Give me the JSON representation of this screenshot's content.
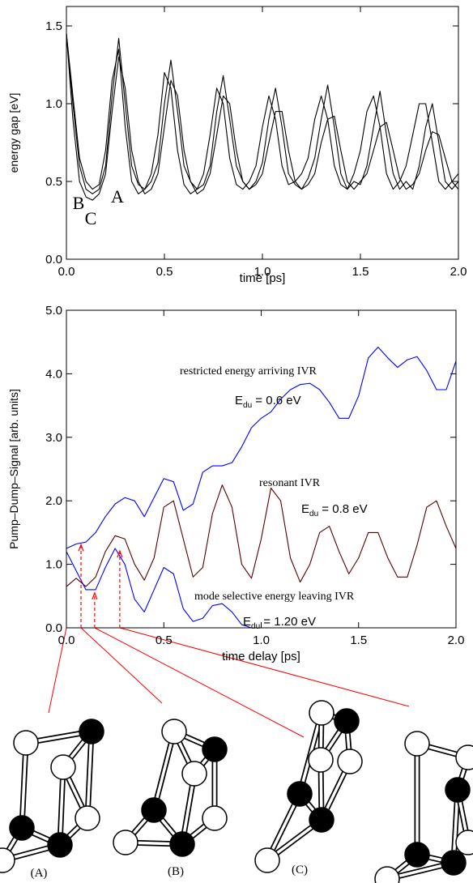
{
  "chart_data": [
    {
      "type": "line",
      "ylabel": "energy gap [eV]",
      "xlabel": "time [ps]",
      "x": [
        0,
        0.033,
        0.067,
        0.1,
        0.133,
        0.167,
        0.2,
        0.233,
        0.267,
        0.3,
        0.333,
        0.367,
        0.4,
        0.433,
        0.467,
        0.5,
        0.533,
        0.567,
        0.6,
        0.633,
        0.667,
        0.7,
        0.733,
        0.767,
        0.8,
        0.833,
        0.867,
        0.9,
        0.933,
        0.967,
        1.0,
        1.033,
        1.067,
        1.1,
        1.133,
        1.167,
        1.2,
        1.233,
        1.267,
        1.3,
        1.333,
        1.367,
        1.4,
        1.433,
        1.467,
        1.5,
        1.533,
        1.567,
        1.6,
        1.633,
        1.667,
        1.7,
        1.733,
        1.767,
        1.8,
        1.833,
        1.867,
        1.9,
        1.933,
        1.967,
        2.0
      ],
      "series": [
        {
          "color": "#000000",
          "values": [
            1.45,
            1.0,
            0.6,
            0.45,
            0.42,
            0.45,
            0.6,
            1.05,
            1.42,
            1.0,
            0.6,
            0.48,
            0.45,
            0.5,
            0.62,
            1.0,
            1.28,
            0.95,
            0.6,
            0.5,
            0.45,
            0.48,
            0.6,
            0.95,
            1.18,
            0.9,
            0.6,
            0.5,
            0.45,
            0.5,
            0.62,
            0.9,
            1.1,
            0.85,
            0.55,
            0.48,
            0.45,
            0.52,
            0.65,
            0.9,
            1.12,
            0.85,
            0.55,
            0.45,
            0.5,
            0.48,
            0.6,
            0.85,
            1.08,
            0.8,
            0.55,
            0.45,
            0.5,
            0.45,
            0.6,
            0.85,
            1.0,
            0.75,
            0.5,
            0.45,
            0.5
          ]
        },
        {
          "color": "#000000",
          "values": [
            1.45,
            0.9,
            0.5,
            0.4,
            0.38,
            0.42,
            0.55,
            0.95,
            1.3,
            1.1,
            0.7,
            0.5,
            0.42,
            0.45,
            0.55,
            0.85,
            1.15,
            1.05,
            0.7,
            0.5,
            0.42,
            0.45,
            0.55,
            0.8,
            1.05,
            1.0,
            0.7,
            0.5,
            0.45,
            0.48,
            0.55,
            0.75,
            0.95,
            0.95,
            0.7,
            0.5,
            0.45,
            0.48,
            0.55,
            0.75,
            0.9,
            0.92,
            0.7,
            0.5,
            0.45,
            0.5,
            0.55,
            0.7,
            0.85,
            0.88,
            0.7,
            0.52,
            0.45,
            0.48,
            0.55,
            0.7,
            0.82,
            0.8,
            0.65,
            0.5,
            0.45
          ]
        },
        {
          "color": "#000000",
          "values": [
            1.45,
            1.05,
            0.65,
            0.5,
            0.45,
            0.48,
            0.7,
            1.15,
            1.35,
            0.85,
            0.5,
            0.42,
            0.45,
            0.55,
            0.8,
            1.2,
            1.1,
            0.7,
            0.48,
            0.42,
            0.45,
            0.55,
            0.8,
            1.1,
            1.0,
            0.65,
            0.48,
            0.45,
            0.5,
            0.6,
            0.85,
            1.05,
            0.9,
            0.6,
            0.48,
            0.5,
            0.55,
            0.65,
            0.9,
            1.05,
            0.9,
            0.6,
            0.48,
            0.45,
            0.55,
            0.7,
            0.95,
            1.05,
            0.85,
            0.55,
            0.45,
            0.5,
            0.6,
            0.8,
            1.0,
            1.0,
            0.75,
            0.5,
            0.45,
            0.5,
            0.55
          ]
        }
      ],
      "xlim": [
        0,
        2
      ],
      "ylim": [
        0,
        1.625
      ],
      "xticks": [
        {
          "value": 0,
          "label": "0.0"
        },
        0.5,
        {
          "value": 1,
          "label": "1.0"
        },
        1.5,
        {
          "value": 2,
          "label": "2.0"
        }
      ],
      "yticks": [
        {
          "value": 0,
          "label": "0.0"
        },
        0.5,
        {
          "value": 1,
          "label": "1.0"
        },
        1.5
      ],
      "annotations": [
        "A",
        "B",
        "C"
      ]
    },
    {
      "type": "line",
      "ylabel": "Pump–Dump–Signal [arb. units]",
      "xlabel": "time delay [ps]",
      "x": [
        0,
        0.05,
        0.1,
        0.15,
        0.2,
        0.25,
        0.3,
        0.35,
        0.4,
        0.45,
        0.5,
        0.55,
        0.6,
        0.65,
        0.7,
        0.75,
        0.8,
        0.85,
        0.9,
        0.95,
        1.0,
        1.05,
        1.1,
        1.15,
        1.2,
        1.25,
        1.3,
        1.35,
        1.4,
        1.45,
        1.5,
        1.55,
        1.6,
        1.65,
        1.7,
        1.75,
        1.8,
        1.85,
        1.9,
        1.95,
        2.0
      ],
      "series": [
        {
          "color": "#0000ff",
          "values": [
            1.25,
            1.32,
            1.35,
            1.5,
            1.75,
            1.95,
            2.05,
            2.0,
            1.75,
            2.05,
            2.35,
            2.3,
            1.85,
            1.95,
            2.45,
            2.55,
            2.55,
            2.6,
            2.85,
            3.15,
            3.3,
            3.4,
            3.6,
            3.75,
            3.83,
            3.85,
            3.75,
            3.55,
            3.3,
            3.3,
            3.65,
            4.25,
            4.42,
            4.25,
            4.1,
            4.22,
            4.27,
            4.05,
            3.75,
            3.75,
            4.2
          ]
        },
        {
          "color": "#5a0000",
          "values": [
            0.65,
            0.78,
            0.65,
            0.8,
            1.2,
            1.45,
            1.4,
            1.0,
            0.75,
            1.1,
            1.9,
            2.0,
            1.4,
            0.8,
            0.95,
            1.8,
            2.25,
            1.9,
            1.0,
            0.78,
            1.4,
            2.2,
            2.0,
            1.1,
            0.72,
            1.0,
            1.5,
            1.6,
            1.2,
            0.85,
            1.1,
            1.5,
            1.5,
            1.1,
            0.8,
            0.8,
            1.3,
            1.9,
            2.0,
            1.6,
            1.25
          ]
        },
        {
          "color": "#0000ff",
          "values": [
            1.2,
            0.9,
            0.6,
            0.6,
            0.95,
            1.25,
            1.0,
            0.45,
            0.25,
            0.6,
            0.95,
            0.85,
            0.3,
            0.1,
            0.15,
            0.35,
            0.38,
            0.25,
            0.05,
            0,
            0,
            0,
            0,
            0,
            0,
            0,
            0,
            0,
            0,
            0,
            0,
            0,
            0,
            0,
            0,
            0,
            0,
            0,
            0,
            0,
            0
          ]
        }
      ],
      "xlim": [
        0,
        2
      ],
      "ylim": [
        0,
        5
      ],
      "xticks": [
        {
          "value": 0,
          "label": "0.0"
        },
        0.5,
        {
          "value": 1,
          "label": "1.0"
        },
        1.5,
        {
          "value": 2,
          "label": "2.0"
        }
      ],
      "yticks": [
        {
          "value": 0,
          "label": "0.0"
        },
        {
          "value": 1,
          "label": "1.0"
        },
        {
          "value": 2,
          "label": "2.0"
        },
        {
          "value": 3,
          "label": "3.0"
        },
        {
          "value": 4,
          "label": "4.0"
        },
        {
          "value": 5,
          "label": "5.0"
        }
      ],
      "annotations": [
        {
          "label": "restricted energy arriving IVR",
          "symbol": "E",
          "sub": "du",
          "text": " = 0.6 eV"
        },
        {
          "label": "resonant IVR",
          "symbol": "E",
          "sub": "du",
          "text": " = 0.8 eV"
        },
        {
          "label": "mode selective energy leaving IVR",
          "symbol": "E",
          "sub": "du",
          "text": " = 1.20 eV"
        }
      ],
      "arrows": {
        "color": "#ff0000",
        "x": [
          0.075,
          0.145,
          0.274
        ],
        "y": [
          1.31,
          0.55,
          1.21
        ]
      }
    }
  ],
  "structures": {
    "labels": [
      "(A)",
      "(B)",
      "(C)"
    ]
  }
}
